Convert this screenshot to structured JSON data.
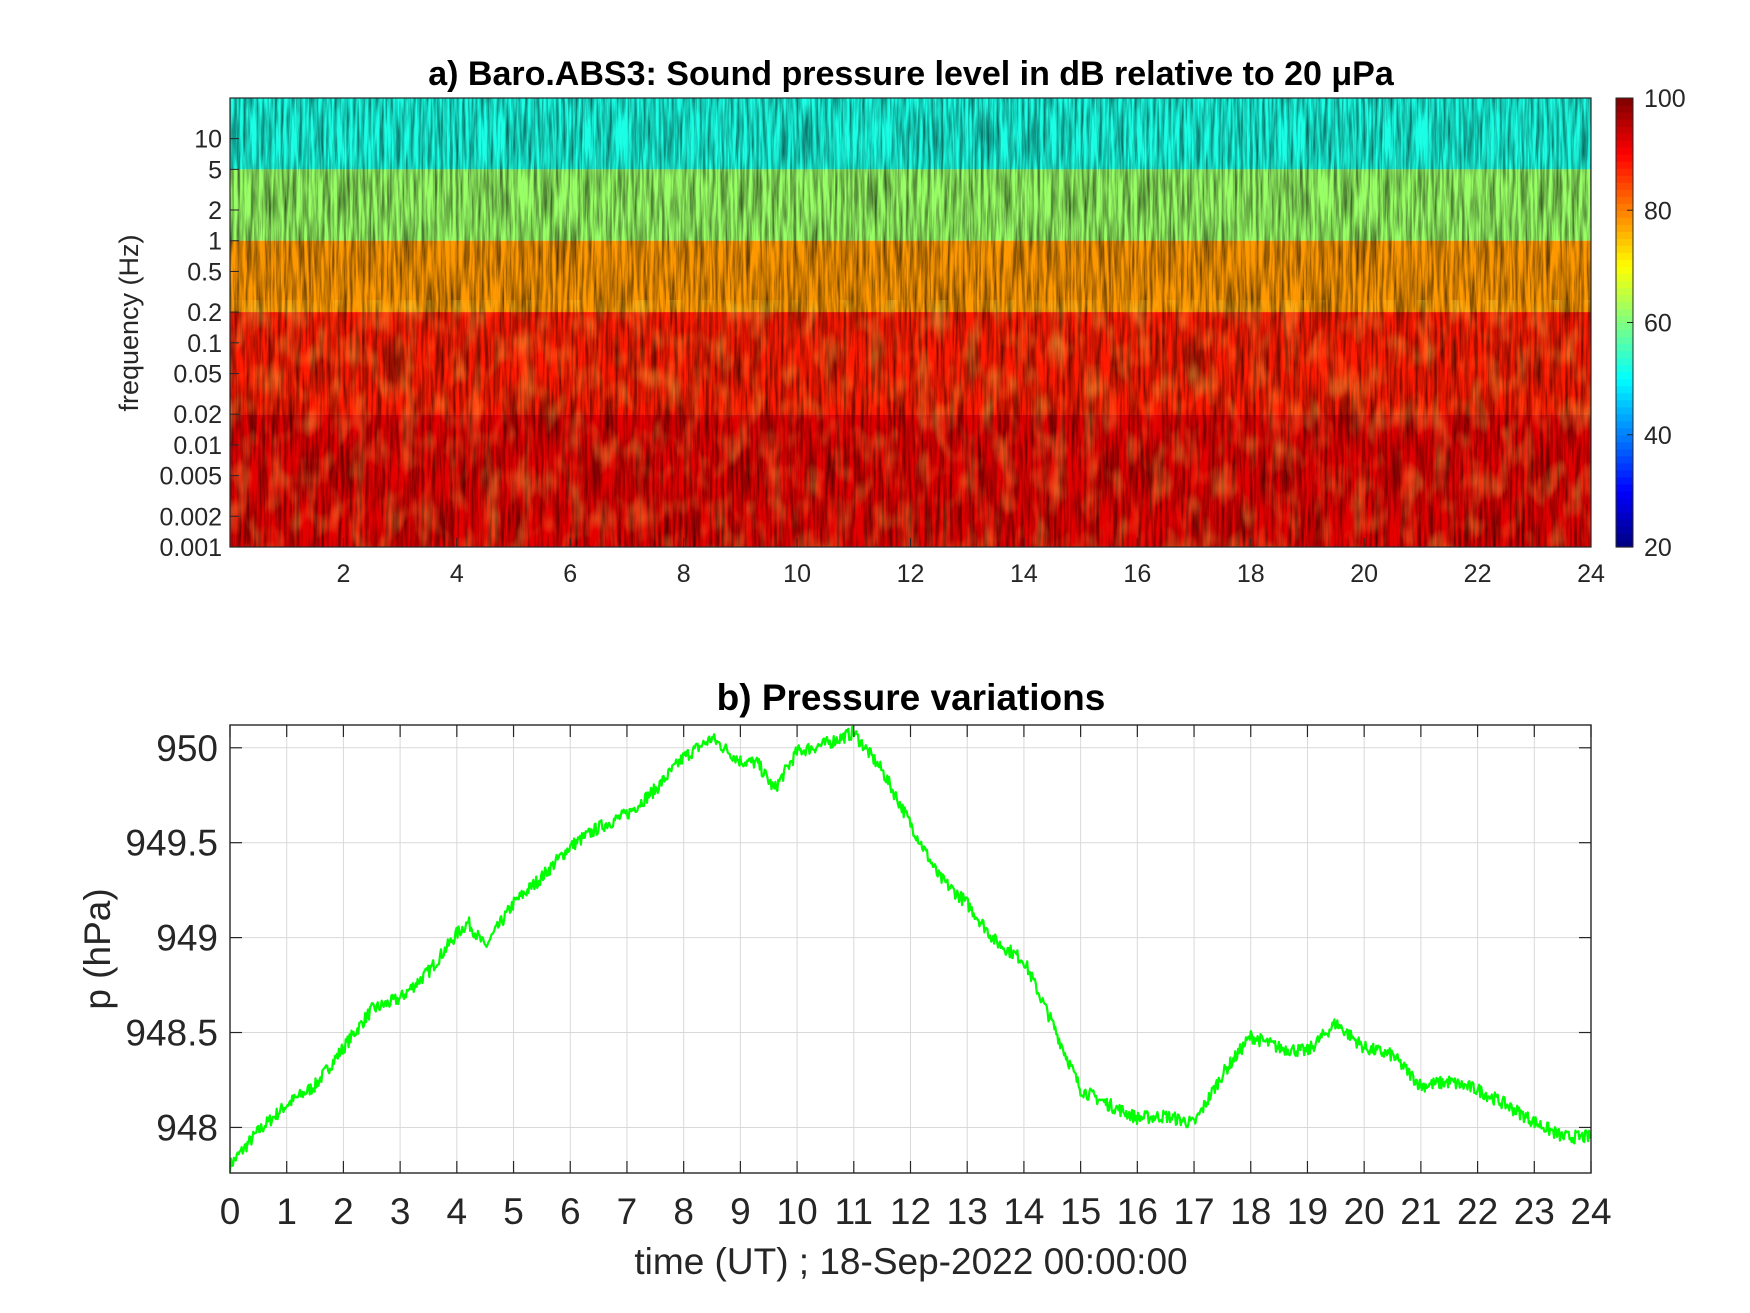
{
  "chart_data": [
    {
      "type": "heatmap",
      "title": "a) Baro.ABS3: Sound pressure level in dB relative to 20 μPa",
      "xlabel": "",
      "ylabel": "frequency (Hz)",
      "x_range": [
        0,
        24
      ],
      "x_ticks": [
        2,
        4,
        6,
        8,
        10,
        12,
        14,
        16,
        18,
        20,
        22,
        24
      ],
      "y_scale": "log",
      "y_range": [
        0.001,
        25
      ],
      "y_ticks": [
        0.001,
        0.002,
        0.005,
        0.01,
        0.02,
        0.05,
        0.1,
        0.2,
        0.5,
        1,
        2,
        5,
        10
      ],
      "y_tick_labels": [
        "0.001",
        "0.002",
        "0.005",
        "0.01",
        "0.02",
        "0.05",
        "0.1",
        "0.2",
        "0.5",
        "1",
        "2",
        "5",
        "10"
      ],
      "colormap": "jet",
      "colorbar": {
        "range": [
          20,
          100
        ],
        "ticks": [
          20,
          40,
          60,
          80,
          100
        ],
        "tick_labels": [
          "20",
          "40",
          "60",
          "80",
          "100"
        ]
      },
      "value_bands": [
        {
          "freq_range": [
            5,
            25
          ],
          "level_db": 52
        },
        {
          "freq_range": [
            1,
            5
          ],
          "level_db": 62
        },
        {
          "freq_range": [
            0.2,
            1
          ],
          "level_db": 78
        },
        {
          "freq_range": [
            0.02,
            0.2
          ],
          "level_db": 88
        },
        {
          "freq_range": [
            0.001,
            0.02
          ],
          "level_db": 92
        }
      ],
      "grid": false
    },
    {
      "type": "line",
      "title": "b) Pressure variations",
      "xlabel": "time (UT) ; 18-Sep-2022 00:00:00",
      "ylabel": "p (hPa)",
      "xlim": [
        0,
        24
      ],
      "ylim": [
        947.76,
        950.12
      ],
      "x_ticks": [
        0,
        1,
        2,
        3,
        4,
        5,
        6,
        7,
        8,
        9,
        10,
        11,
        12,
        13,
        14,
        15,
        16,
        17,
        18,
        19,
        20,
        21,
        22,
        23,
        24
      ],
      "x_tick_labels": [
        "0",
        "1",
        "2",
        "3",
        "4",
        "5",
        "6",
        "7",
        "8",
        "9",
        "10",
        "11",
        "12",
        "13",
        "14",
        "15",
        "16",
        "17",
        "18",
        "19",
        "20",
        "21",
        "22",
        "23",
        "24"
      ],
      "y_ticks": [
        948,
        948.5,
        949,
        949.5,
        950
      ],
      "y_tick_labels": [
        "948",
        "948.5",
        "949",
        "949.5",
        "950"
      ],
      "grid": true,
      "series": [
        {
          "color": "#00ff00",
          "x": [
            0,
            0.5,
            1,
            1.5,
            2,
            2.5,
            3,
            3.5,
            4,
            4.2,
            4.5,
            5,
            5.5,
            6,
            6.5,
            7,
            7.5,
            8,
            8.5,
            9,
            9.3,
            9.6,
            10,
            10.5,
            11,
            11.5,
            12,
            12.5,
            13,
            13.5,
            14,
            14.5,
            15,
            15.5,
            16,
            16.5,
            17,
            17.5,
            18,
            18.5,
            19,
            19.5,
            20,
            20.5,
            21,
            21.5,
            22,
            22.5,
            23,
            23.5,
            24
          ],
          "y": [
            947.8,
            947.98,
            948.12,
            948.22,
            948.42,
            948.62,
            948.68,
            948.82,
            949.02,
            949.08,
            948.95,
            949.18,
            949.32,
            949.48,
            949.58,
            949.65,
            949.78,
            949.95,
            950.05,
            949.93,
            949.92,
            949.78,
            949.98,
            950.02,
            950.08,
            949.88,
            949.6,
            949.32,
            949.18,
            948.98,
            948.88,
            948.55,
            948.2,
            948.12,
            948.05,
            948.06,
            948.02,
            948.28,
            948.48,
            948.42,
            948.4,
            948.55,
            948.42,
            948.38,
            948.22,
            948.24,
            948.2,
            948.12,
            948.03,
            947.95,
            947.95
          ]
        }
      ]
    }
  ]
}
